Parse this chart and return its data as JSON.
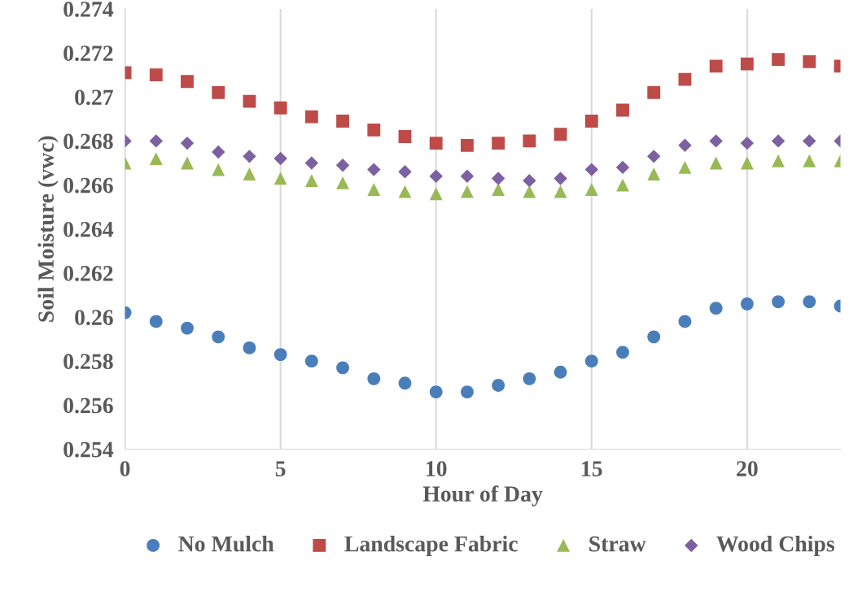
{
  "chart_data": {
    "type": "scatter",
    "xlabel": "Hour of Day",
    "ylabel": "Soil Moisture (vwc)",
    "x": [
      0,
      1,
      2,
      3,
      4,
      5,
      6,
      7,
      8,
      9,
      10,
      11,
      12,
      13,
      14,
      15,
      16,
      17,
      18,
      19,
      20,
      21,
      22,
      23
    ],
    "series": [
      {
        "name": "No Mulch",
        "color": "#4a7ebb",
        "marker": "circle",
        "values": [
          0.2602,
          0.2598,
          0.2595,
          0.2591,
          0.2586,
          0.2583,
          0.258,
          0.2577,
          0.2572,
          0.257,
          0.2566,
          0.2566,
          0.2569,
          0.2572,
          0.2575,
          0.258,
          0.2584,
          0.2591,
          0.2598,
          0.2604,
          0.2606,
          0.2607,
          0.2607,
          0.2605
        ]
      },
      {
        "name": "Landscape Fabric",
        "color": "#be4b48",
        "marker": "square",
        "values": [
          0.2711,
          0.271,
          0.2707,
          0.2702,
          0.2698,
          0.2695,
          0.2691,
          0.2689,
          0.2685,
          0.2682,
          0.2679,
          0.2678,
          0.2679,
          0.268,
          0.2683,
          0.2689,
          0.2694,
          0.2702,
          0.2708,
          0.2714,
          0.2715,
          0.2717,
          0.2716,
          0.2714
        ]
      },
      {
        "name": "Straw",
        "color": "#98b954",
        "marker": "triangle",
        "values": [
          0.267,
          0.2672,
          0.267,
          0.2667,
          0.2665,
          0.2663,
          0.2662,
          0.2661,
          0.2658,
          0.2657,
          0.2656,
          0.2657,
          0.2658,
          0.2657,
          0.2657,
          0.2658,
          0.266,
          0.2665,
          0.2668,
          0.267,
          0.267,
          0.2671,
          0.2671,
          0.2671
        ]
      },
      {
        "name": "Wood Chips",
        "color": "#7d60a0",
        "marker": "diamond",
        "values": [
          0.268,
          0.268,
          0.2679,
          0.2675,
          0.2673,
          0.2672,
          0.267,
          0.2669,
          0.2667,
          0.2666,
          0.2664,
          0.2664,
          0.2663,
          0.2662,
          0.2663,
          0.2667,
          0.2668,
          0.2673,
          0.2678,
          0.268,
          0.2679,
          0.268,
          0.268,
          0.268
        ]
      }
    ],
    "xlim": [
      0,
      23
    ],
    "xticks": [
      0,
      5,
      10,
      15,
      20
    ],
    "ylim": [
      0.254,
      0.274
    ],
    "yticks": [
      0.254,
      0.256,
      0.258,
      0.26,
      0.262,
      0.264,
      0.266,
      0.268,
      0.27,
      0.272,
      0.274
    ],
    "grid": "x",
    "legend": "bottom"
  }
}
